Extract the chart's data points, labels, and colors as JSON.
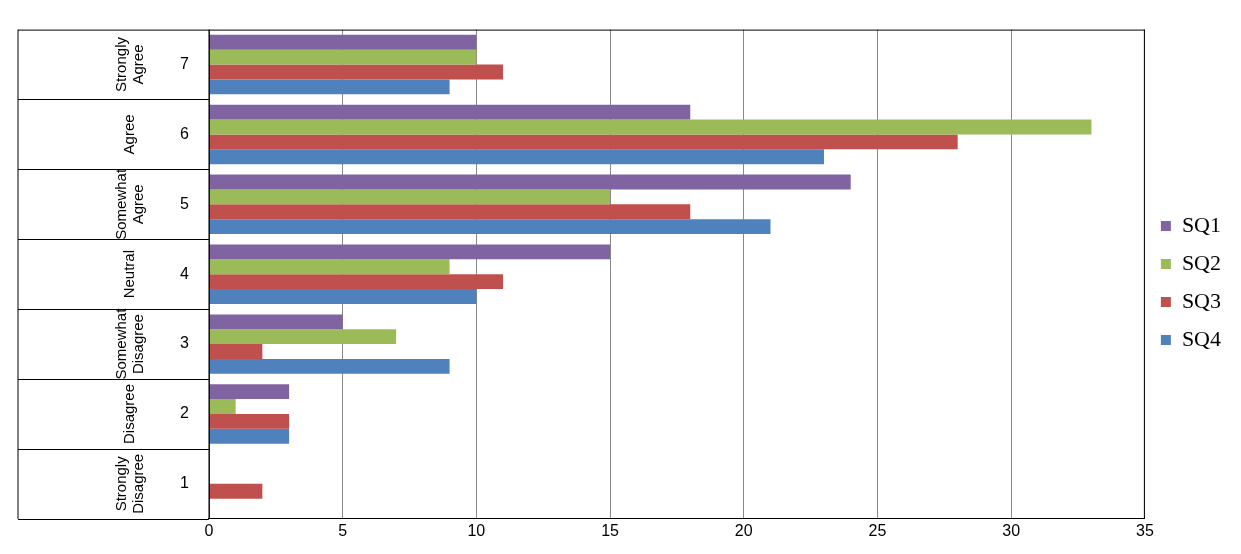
{
  "chart_data": {
    "type": "bar",
    "orientation": "horizontal",
    "categories": [
      "7",
      "6",
      "5",
      "4",
      "3",
      "2",
      "1"
    ],
    "series": [
      {
        "name": "SQ1",
        "color": "#8064a2",
        "values": [
          10,
          18,
          24,
          15,
          5,
          3,
          0
        ]
      },
      {
        "name": "SQ2",
        "color": "#9bbb59",
        "values": [
          10,
          33,
          15,
          9,
          7,
          1,
          0
        ]
      },
      {
        "name": "SQ3",
        "color": "#c0504d",
        "values": [
          11,
          28,
          18,
          11,
          2,
          3,
          2
        ]
      },
      {
        "name": "SQ4",
        "color": "#4f81bd",
        "values": [
          9,
          23,
          21,
          10,
          9,
          3,
          0
        ]
      }
    ],
    "xlim": [
      0,
      35
    ],
    "xticks": [
      0,
      5,
      10,
      15,
      20,
      25,
      30,
      35
    ],
    "grid": "x",
    "legend": "right",
    "annotations": [
      "Strongly Agree",
      "Agree",
      "Somewhat Agree",
      "Neutral",
      "Somewhat Disagree",
      "Disagree",
      "Strongly Disagree"
    ]
  }
}
